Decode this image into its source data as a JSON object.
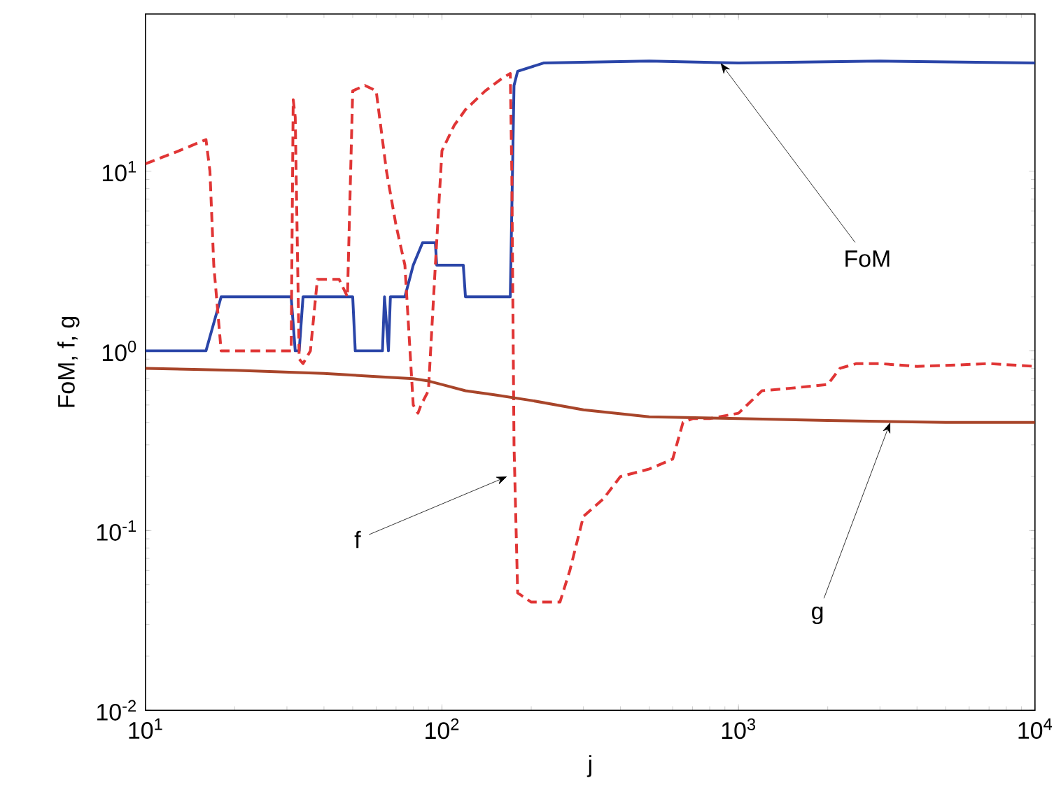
{
  "chart_data": {
    "type": "line",
    "xlabel": "j",
    "ylabel": "FoM, f, g",
    "log": "xy",
    "grid": false,
    "legend": false,
    "marker": "none",
    "xlim": [
      10,
      10000
    ],
    "ylim": [
      0.01,
      75
    ],
    "xticks": [
      {
        "value": 10,
        "label": "10$^{1}$"
      },
      {
        "value": 100,
        "label": "10$^{2}$"
      },
      {
        "value": 1000,
        "label": "10$^{3}$"
      },
      {
        "value": 10000,
        "label": "10$^{4}$"
      }
    ],
    "yticks": [
      {
        "value": 0.01,
        "label": "10$^{-2}$"
      },
      {
        "value": 0.1,
        "label": "10$^{-1}$"
      },
      {
        "value": 1,
        "label": "10$^{0}$"
      },
      {
        "value": 10,
        "label": "10$^{1}$"
      }
    ],
    "series": [
      {
        "color": "#2a45a8",
        "line_style": "solid",
        "x": [
          10,
          16,
          18,
          31,
          32,
          33,
          34,
          50,
          51,
          63,
          64,
          66,
          67,
          70,
          75,
          80,
          86,
          95,
          96,
          118,
          120,
          170,
          175,
          180,
          220,
          500,
          1000,
          3000,
          10000
        ],
        "values": [
          1,
          1,
          2,
          2,
          1,
          1,
          2,
          2,
          1,
          1,
          2,
          1,
          2,
          2,
          2,
          3,
          4,
          4,
          3,
          3,
          2,
          2,
          30,
          36,
          40,
          41,
          40,
          41,
          40
        ]
      },
      {
        "color": "#e03535",
        "line_style": "dashed",
        "x": [
          10,
          13,
          16,
          16.5,
          17,
          18,
          20,
          25,
          30,
          31,
          31.5,
          32,
          33,
          34,
          36,
          38,
          40,
          45,
          48,
          50,
          55,
          60,
          65,
          70,
          75,
          80,
          83,
          85,
          90,
          95,
          100,
          110,
          120,
          140,
          160,
          170,
          172,
          175,
          180,
          200,
          250,
          270,
          300,
          350,
          400,
          500,
          600,
          650,
          700,
          800,
          1000,
          1200,
          1500,
          2000,
          2200,
          2500,
          3000,
          4000,
          5000,
          7000,
          10000
        ],
        "values": [
          11,
          13,
          15,
          10,
          3,
          1,
          1,
          1,
          1,
          1,
          25,
          20,
          0.9,
          0.85,
          1,
          2.5,
          2.5,
          2.5,
          2,
          28,
          30,
          28,
          10,
          5,
          3,
          0.5,
          0.45,
          0.5,
          0.6,
          3,
          13,
          18,
          22,
          28,
          33,
          35,
          10,
          0.3,
          0.045,
          0.04,
          0.04,
          0.06,
          0.12,
          0.15,
          0.2,
          0.22,
          0.25,
          0.4,
          0.42,
          0.42,
          0.45,
          0.6,
          0.62,
          0.65,
          0.8,
          0.85,
          0.85,
          0.82,
          0.83,
          0.85,
          0.82
        ]
      },
      {
        "color": "#a8452a",
        "line_style": "solid",
        "x": [
          10,
          20,
          40,
          60,
          80,
          90,
          100,
          120,
          150,
          200,
          300,
          500,
          1000,
          2000,
          5000,
          10000
        ],
        "values": [
          0.8,
          0.78,
          0.75,
          0.72,
          0.7,
          0.68,
          0.65,
          0.6,
          0.57,
          0.53,
          0.47,
          0.43,
          0.42,
          0.41,
          0.4,
          0.4
        ]
      }
    ],
    "annotations": [
      {
        "text": "FoM",
        "x": 870,
        "y": 40
      },
      {
        "text": "f",
        "x": 166,
        "y": 0.2
      },
      {
        "text": "g",
        "x": 3250,
        "y": 0.4
      }
    ]
  }
}
